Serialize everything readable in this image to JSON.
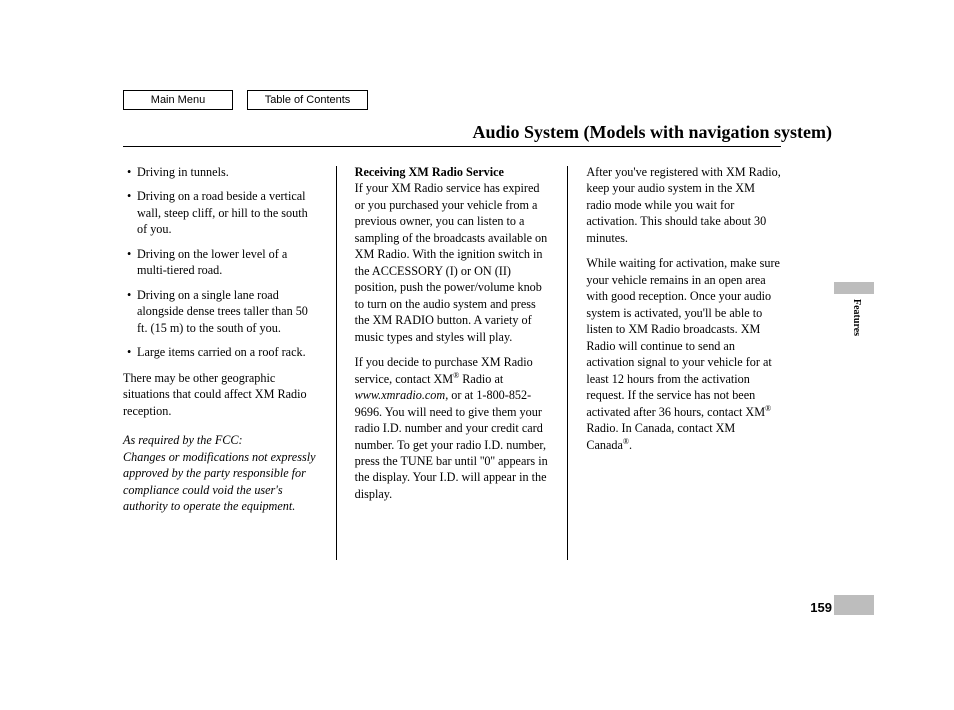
{
  "nav": {
    "main_menu": "Main Menu",
    "toc": "Table of Contents"
  },
  "title": "Audio System (Models with navigation system)",
  "page_number": "159",
  "side_tab": "Features",
  "col1": {
    "bullets": [
      "Driving in tunnels.",
      "Driving on a road beside a vertical wall, steep cliff, or hill to the south of you.",
      "Driving on the lower level of a multi-tiered road.",
      "Driving on a single lane road alongside dense trees taller than 50 ft. (15 m) to the south of you.",
      "Large items carried on a roof rack."
    ],
    "geo_note": "There may be other geographic situations that could affect XM Radio reception.",
    "fcc_line1": "As required by the FCC:",
    "fcc_line2": "Changes or modifications not expressly approved by the party responsible for compliance could void the user's authority to operate the equipment."
  },
  "col2": {
    "heading": "Receiving XM Radio Service",
    "p1": "If your XM Radio service has expired or you purchased your vehicle from a previous owner, you can listen to a sampling of the broadcasts available on XM Radio. With the ignition switch in the ACCESSORY (I) or ON (II) position, push the power/volume knob to turn on the audio system and press the XM RADIO button. A variety of music types and styles will play.",
    "p2a": "If you decide to purchase XM Radio service, contact XM",
    "p2b": " Radio at ",
    "p2_url": "www.xmradio.com",
    "p2c": ", or at 1-800-852-9696. You will need to give them your radio I.D. number and your credit card number. To get your radio I.D. number, press the TUNE bar until ''0'' appears in the display. Your I.D. will appear in the display."
  },
  "col3": {
    "p1": "After you've registered with XM Radio, keep your audio system in the XM radio mode while you wait for activation. This should take about 30 minutes.",
    "p2a": "While waiting for activation, make sure your vehicle remains in an open area with good reception. Once your audio system is activated, you'll be able to listen to XM Radio broadcasts. XM Radio will continue to send an activation signal to your vehicle for at least 12 hours from the activation request. If the service has not been activated after 36 hours, contact XM",
    "p2b": " Radio. In Canada, contact XM Canada",
    "p2c": "."
  }
}
